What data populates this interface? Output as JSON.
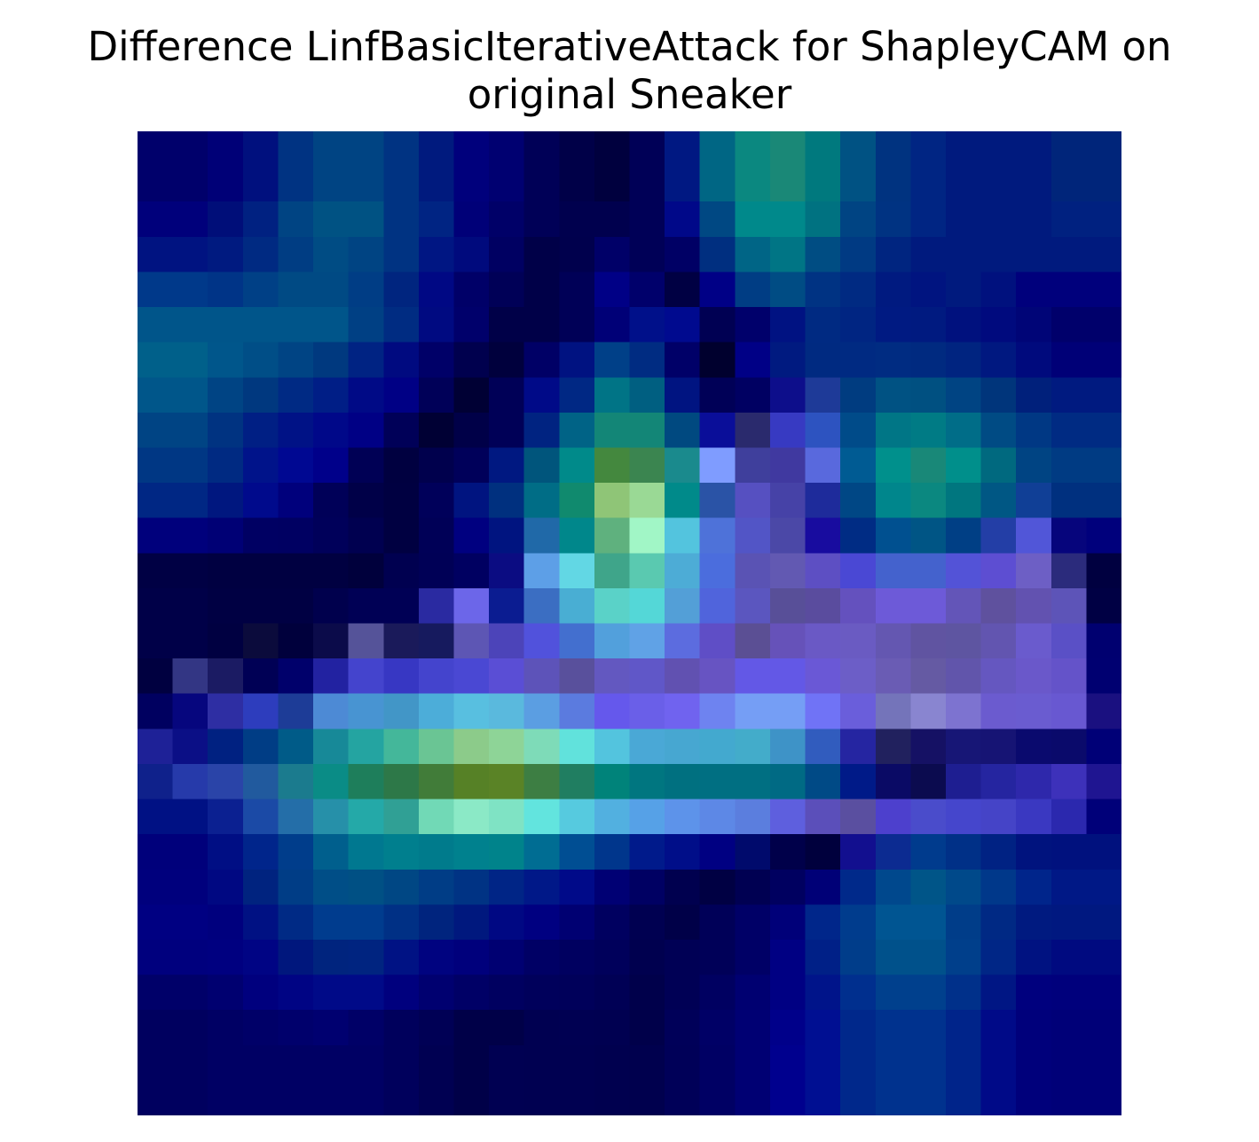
{
  "chart_data": {
    "type": "heatmap",
    "title_lines": [
      "Difference LinfBasicIterativeAttack for ShapleyCAM on",
      "original Sneaker"
    ],
    "xlabel": "",
    "ylabel": "",
    "axes_visible": false,
    "grid": false,
    "legend": "none",
    "rows": 28,
    "cols": 28,
    "cells": [
      [
        "#00006b",
        "#00006b",
        "#000077",
        "#00107e",
        "#003382",
        "#004483",
        "#004483",
        "#003382",
        "#001a7e",
        "#00007c",
        "#000071",
        "#000057",
        "#000048",
        "#00003e",
        "#000057",
        "#001882",
        "#006684",
        "#0b8880",
        "#1a8877",
        "#00797e",
        "#005283",
        "#003380",
        "#002583",
        "#001a7e",
        "#001a7e",
        "#001a7e",
        "#00257a",
        "#00257a"
      ],
      [
        "#00006b",
        "#00006b",
        "#000077",
        "#00107e",
        "#003382",
        "#004483",
        "#004483",
        "#003382",
        "#001a7e",
        "#00007c",
        "#000071",
        "#000057",
        "#000048",
        "#00003e",
        "#000057",
        "#001882",
        "#006684",
        "#0b8880",
        "#1a8877",
        "#00797e",
        "#005283",
        "#003380",
        "#002583",
        "#001a7e",
        "#001a7e",
        "#001a7e",
        "#00257a",
        "#00257a"
      ],
      [
        "#00007b",
        "#00007b",
        "#000e79",
        "#002181",
        "#004483",
        "#005283",
        "#005283",
        "#003382",
        "#002483",
        "#000078",
        "#000068",
        "#000057",
        "#00004e",
        "#00004e",
        "#000057",
        "#000889",
        "#004883",
        "#00898b",
        "#00898b",
        "#007281",
        "#004483",
        "#003382",
        "#002583",
        "#001a7e",
        "#001a7e",
        "#001a7e",
        "#002180",
        "#002180"
      ],
      [
        "#001381",
        "#001381",
        "#001a80",
        "#002a82",
        "#003d83",
        "#004c84",
        "#004483",
        "#003382",
        "#001683",
        "#000a7d",
        "#000062",
        "#000048",
        "#00004d",
        "#000068",
        "#000057",
        "#000065",
        "#002f80",
        "#006586",
        "#007585",
        "#004d83",
        "#003a83",
        "#002580",
        "#001a7e",
        "#001a7e",
        "#001a7e",
        "#001a7e",
        "#001a7e",
        "#001a7e"
      ],
      [
        "#00398a",
        "#00398a",
        "#003487",
        "#004086",
        "#004a84",
        "#004a84",
        "#003d85",
        "#00257f",
        "#000884",
        "#000068",
        "#000057",
        "#000048",
        "#000057",
        "#000086",
        "#00006b",
        "#000043",
        "#000086",
        "#003d84",
        "#004c84",
        "#003383",
        "#002a82",
        "#001a80",
        "#001480",
        "#001a7e",
        "#00117e",
        "#00007c",
        "#00007c",
        "#00007c"
      ],
      [
        "#00558a",
        "#00558a",
        "#00558a",
        "#00558a",
        "#00558a",
        "#00558a",
        "#004084",
        "#002c82",
        "#000a81",
        "#00006b",
        "#000048",
        "#000048",
        "#000057",
        "#000077",
        "#00108a",
        "#000a8f",
        "#000053",
        "#00006b",
        "#001282",
        "#002a82",
        "#002582",
        "#001a82",
        "#001a80",
        "#00117e",
        "#000a7e",
        "#000577",
        "#00006b",
        "#00006b"
      ],
      [
        "#00608a",
        "#00608a",
        "#00568b",
        "#004e87",
        "#004484",
        "#00397f",
        "#002383",
        "#000a80",
        "#000068",
        "#00004e",
        "#00003d",
        "#000066",
        "#001281",
        "#004088",
        "#002c82",
        "#000068",
        "#00002e",
        "#000086",
        "#001a80",
        "#002a81",
        "#002a82",
        "#002c82",
        "#002a80",
        "#002480",
        "#001880",
        "#000a7d",
        "#000077",
        "#000077"
      ],
      [
        "#00568a",
        "#00568a",
        "#004484",
        "#00387f",
        "#002a84",
        "#001e86",
        "#000a86",
        "#000085",
        "#000058",
        "#000034",
        "#000057",
        "#000a88",
        "#002884",
        "#007486",
        "#005f81",
        "#001481",
        "#000057",
        "#000062",
        "#0d0e8b",
        "#1e3a98",
        "#003c80",
        "#005283",
        "#005081",
        "#004483",
        "#00357b",
        "#00207b",
        "#001a80",
        "#001a80"
      ],
      [
        "#004484",
        "#004484",
        "#003381",
        "#001f84",
        "#001286",
        "#000889",
        "#000085",
        "#000058",
        "#000034",
        "#000048",
        "#000057",
        "#002381",
        "#006386",
        "#138677",
        "#138677",
        "#004980",
        "#0a0e99",
        "#2a2a6d",
        "#373ac2",
        "#2d53c0",
        "#004b89",
        "#007686",
        "#007b85",
        "#006d88",
        "#004b84",
        "#003884",
        "#002b83",
        "#002b83"
      ],
      [
        "#003784",
        "#003784",
        "#002a82",
        "#00138a",
        "#000892",
        "#00008a",
        "#000055",
        "#000040",
        "#00004d",
        "#00005a",
        "#001881",
        "#00557c",
        "#008a8a",
        "#44883e",
        "#3b8550",
        "#1a8a8d",
        "#7f9cff",
        "#3f3f9c",
        "#4039a0",
        "#5969dd",
        "#005b93",
        "#00908c",
        "#198878",
        "#008f8b",
        "#00697f",
        "#004483",
        "#003b83",
        "#003b83"
      ],
      [
        "#002784",
        "#002784",
        "#00177f",
        "#000a8c",
        "#00007c",
        "#000058",
        "#000048",
        "#000041",
        "#00005a",
        "#001480",
        "#00307f",
        "#006d86",
        "#108a6e",
        "#8fc577",
        "#9ad995",
        "#008a8a",
        "#2a53a6",
        "#5650c1",
        "#4642a7",
        "#1e2b9b",
        "#004785",
        "#00868c",
        "#0b8880",
        "#00767f",
        "#005784",
        "#103f96",
        "#00307f",
        "#00307f"
      ],
      [
        "#00007c",
        "#00007c",
        "#000075",
        "#000063",
        "#000062",
        "#00005a",
        "#000050",
        "#000041",
        "#000057",
        "#000080",
        "#001480",
        "#2069a8",
        "#00878b",
        "#5fb17e",
        "#a1f6c6",
        "#53c4de",
        "#4e72d9",
        "#5255c6",
        "#4b48a7",
        "#180c9f",
        "#002c84",
        "#005090",
        "#005585",
        "#003f85",
        "#233ea6",
        "#5156d8",
        "#06057c",
        "#00007c"
      ],
      [
        "#000044",
        "#000044",
        "#000041",
        "#000041",
        "#000041",
        "#000041",
        "#00003c",
        "#000050",
        "#000056",
        "#000061",
        "#0b0c82",
        "#5d9fe7",
        "#62d7e4",
        "#3fa58a",
        "#5ac9b0",
        "#4dacd6",
        "#4b6ddd",
        "#5a53b4",
        "#6259b2",
        "#5d4fc3",
        "#4a48d4",
        "#4462cd",
        "#4462cd",
        "#5353d7",
        "#5d4ed2",
        "#6d5fc5",
        "#2b2b7c",
        "#000040"
      ],
      [
        "#000048",
        "#000048",
        "#000043",
        "#000043",
        "#000043",
        "#00004d",
        "#000055",
        "#000055",
        "#2a2aa1",
        "#6c66e9",
        "#0b1c91",
        "#3b6ec2",
        "#49aed3",
        "#5ad2c8",
        "#54d7d7",
        "#539fd7",
        "#5064dc",
        "#5b56bf",
        "#584f98",
        "#5a4c9e",
        "#6451be",
        "#6d5ad8",
        "#6d5ad8",
        "#6355b8",
        "#5f519e",
        "#6252b0",
        "#5d54b8",
        "#000044"
      ],
      [
        "#000048",
        "#000048",
        "#000041",
        "#0b0b3c",
        "#00003c",
        "#0b0b4a",
        "#555399",
        "#1a1a5a",
        "#161a5e",
        "#5d56b4",
        "#4c44b9",
        "#5152dc",
        "#436fcf",
        "#52a0dc",
        "#60a2e6",
        "#5c6cdf",
        "#5f4ec6",
        "#5b4f94",
        "#6652b9",
        "#6a59c5",
        "#6a5bc2",
        "#6457b1",
        "#6054a1",
        "#5e55a1",
        "#6255b0",
        "#6a5bcd",
        "#5a50c6",
        "#000070"
      ],
      [
        "#000040",
        "#333684",
        "#1b1b63",
        "#000055",
        "#00006b",
        "#2222a1",
        "#4444cd",
        "#3737c3",
        "#4444cd",
        "#4a48d3",
        "#5a4ed5",
        "#5d53b9",
        "#59509c",
        "#6358c0",
        "#6057c8",
        "#6151b1",
        "#6754c2",
        "#6358e6",
        "#6358e6",
        "#6a58d6",
        "#6c5ec7",
        "#6a5cb4",
        "#655aa3",
        "#6155ab",
        "#6557c0",
        "#6a58ca",
        "#6453c9",
        "#000071"
      ],
      [
        "#000060",
        "#06067e",
        "#2e2ea3",
        "#2d3dbd",
        "#1d3c97",
        "#4d8ad5",
        "#4894d2",
        "#4296c7",
        "#4cadd9",
        "#58bfe0",
        "#5ab9dd",
        "#5b9ee2",
        "#5b7bdf",
        "#6558ec",
        "#6a5fe8",
        "#7063ef",
        "#6e83f0",
        "#759ef5",
        "#759ef5",
        "#7073f6",
        "#6a5edb",
        "#7474ba",
        "#8985d0",
        "#7d73d0",
        "#6b5bcf",
        "#6a5cd0",
        "#6858d1",
        "#1a1080"
      ],
      [
        "#1e2197",
        "#0b0f86",
        "#002181",
        "#003d85",
        "#005b88",
        "#178998",
        "#24a4a1",
        "#44b79a",
        "#6ac594",
        "#8ccb8a",
        "#8ed497",
        "#7edbb8",
        "#61e2dc",
        "#53c4de",
        "#4aa8d6",
        "#47a7d1",
        "#43a9cf",
        "#43acca",
        "#3e93c7",
        "#315cbe",
        "#2525a1",
        "#21215e",
        "#151164",
        "#171676",
        "#161474",
        "#0a0a6e",
        "#0a0a6b",
        "#000077"
      ],
      [
        "#0f218b",
        "#263aaa",
        "#2a44a8",
        "#215a9e",
        "#1b7b8e",
        "#0a8c86",
        "#1e7e5b",
        "#2d7848",
        "#417c39",
        "#568126",
        "#5a8326",
        "#3d7e43",
        "#207e61",
        "#00837a",
        "#007680",
        "#007080",
        "#006f82",
        "#006f82",
        "#006a84",
        "#004a86",
        "#001a88",
        "#0a0a65",
        "#0b0b4f",
        "#1e1e91",
        "#2525a0",
        "#2e28ab",
        "#3d31ba",
        "#1f1591"
      ],
      [
        "#001184",
        "#001184",
        "#0b2091",
        "#1b4aa6",
        "#246ea8",
        "#2690a9",
        "#24a9a8",
        "#30a095",
        "#71d9b6",
        "#8be9c6",
        "#7fe3c4",
        "#62e4de",
        "#56cadf",
        "#52b0e0",
        "#56a1e7",
        "#5d93ea",
        "#5d88e6",
        "#5b7ede",
        "#5e5fde",
        "#5b4fba",
        "#5a4fa0",
        "#4d40cd",
        "#4a4ccb",
        "#4546cc",
        "#4544c7",
        "#3a38c1",
        "#2b28ae",
        "#000079"
      ],
      [
        "#00007b",
        "#00007b",
        "#000e84",
        "#00258b",
        "#003d8b",
        "#005f8d",
        "#007890",
        "#007f8e",
        "#007b8c",
        "#00818e",
        "#00838b",
        "#006d93",
        "#004e93",
        "#00368c",
        "#001a8b",
        "#000e89",
        "#000082",
        "#000a6c",
        "#00004a",
        "#00003d",
        "#120f8f",
        "#0c2b91",
        "#003b8d",
        "#003087",
        "#002283",
        "#00137e",
        "#00117e",
        "#00117e"
      ],
      [
        "#00007d",
        "#00007d",
        "#000882",
        "#00237f",
        "#003d86",
        "#004e87",
        "#005084",
        "#004784",
        "#003d86",
        "#003384",
        "#002586",
        "#001888",
        "#000a89",
        "#000074",
        "#000063",
        "#00004f",
        "#000043",
        "#000052",
        "#000060",
        "#000077",
        "#00298a",
        "#00488d",
        "#005588",
        "#00498a",
        "#00388a",
        "#00258b",
        "#001886",
        "#001886"
      ],
      [
        "#000082",
        "#000082",
        "#00007e",
        "#001183",
        "#002a85",
        "#003c8e",
        "#003c8e",
        "#003085",
        "#00247e",
        "#00187e",
        "#000883",
        "#000081",
        "#000072",
        "#000060",
        "#000051",
        "#000048",
        "#000058",
        "#000067",
        "#000079",
        "#00268a",
        "#003c8d",
        "#005592",
        "#005592",
        "#003d89",
        "#002984",
        "#001a80",
        "#001880",
        "#001880"
      ],
      [
        "#00007e",
        "#00007e",
        "#000080",
        "#000484",
        "#00177d",
        "#00247e",
        "#002480",
        "#001284",
        "#000380",
        "#00007c",
        "#000072",
        "#000065",
        "#000060",
        "#00005b",
        "#00004f",
        "#000055",
        "#000058",
        "#000066",
        "#000083",
        "#002087",
        "#003d8a",
        "#00518b",
        "#00518b",
        "#003f8b",
        "#002686",
        "#001281",
        "#000a80",
        "#000a80"
      ],
      [
        "#000069",
        "#000069",
        "#000070",
        "#00007e",
        "#000484",
        "#000a88",
        "#000a88",
        "#00007e",
        "#000070",
        "#000066",
        "#000060",
        "#00005b",
        "#00005a",
        "#000055",
        "#00004b",
        "#000055",
        "#000061",
        "#000071",
        "#000083",
        "#00148a",
        "#002f8e",
        "#00408d",
        "#00408d",
        "#00308a",
        "#001684",
        "#00007e",
        "#00007c",
        "#00007c"
      ],
      [
        "#00005f",
        "#00005f",
        "#000064",
        "#000068",
        "#00006c",
        "#000070",
        "#000067",
        "#00005c",
        "#000055",
        "#000048",
        "#000048",
        "#000051",
        "#000052",
        "#000051",
        "#00004a",
        "#000059",
        "#000066",
        "#000073",
        "#00008a",
        "#000f92",
        "#00288b",
        "#00328e",
        "#00328e",
        "#00248a",
        "#000a88",
        "#00007b",
        "#000078",
        "#000078"
      ],
      [
        "#00005f",
        "#00005f",
        "#000064",
        "#000064",
        "#000064",
        "#000064",
        "#000064",
        "#00005c",
        "#000052",
        "#000048",
        "#000052",
        "#000051",
        "#000051",
        "#00004f",
        "#00004e",
        "#000058",
        "#000064",
        "#000073",
        "#00008e",
        "#000f92",
        "#00288b",
        "#00328e",
        "#00328e",
        "#00248a",
        "#000a88",
        "#00007b",
        "#000078",
        "#000078"
      ],
      [
        "#00005f",
        "#00005f",
        "#000064",
        "#000064",
        "#000064",
        "#000064",
        "#000064",
        "#00005c",
        "#000052",
        "#000048",
        "#000052",
        "#000051",
        "#000051",
        "#00004f",
        "#00004e",
        "#000058",
        "#000064",
        "#000073",
        "#00008e",
        "#000f92",
        "#00288b",
        "#00328e",
        "#00328e",
        "#00248a",
        "#000a88",
        "#00007b",
        "#000078",
        "#000078"
      ]
    ]
  }
}
